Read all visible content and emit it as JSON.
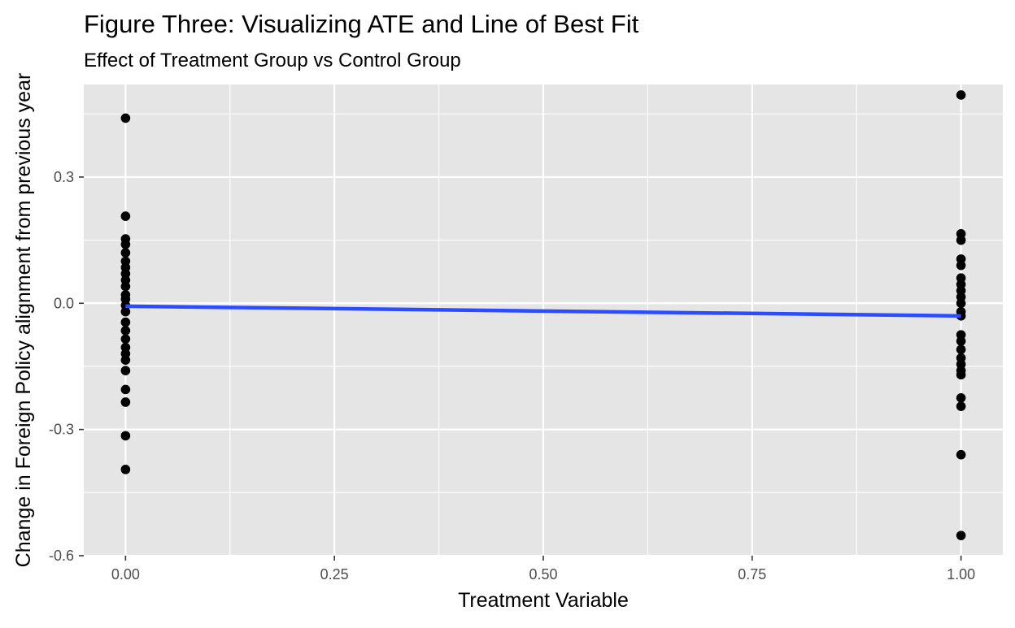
{
  "chart_data": {
    "type": "scatter",
    "title": "Figure Three: Visualizing ATE and Line of Best Fit",
    "subtitle": "Effect of Treatment Group vs Control Group",
    "xlabel": "Treatment Variable",
    "ylabel": "Change in Foreign Policy alignment from previous year",
    "xlim": [
      -0.05,
      1.05
    ],
    "ylim": [
      -0.6,
      0.52
    ],
    "x_ticks": [
      {
        "value": 0,
        "label": "0.00"
      },
      {
        "value": 0.25,
        "label": "0.25"
      },
      {
        "value": 0.5,
        "label": "0.50"
      },
      {
        "value": 0.75,
        "label": "0.75"
      },
      {
        "value": 1,
        "label": "1.00"
      }
    ],
    "y_ticks": [
      {
        "value": -0.6,
        "label": "-0.6"
      },
      {
        "value": -0.3,
        "label": "-0.3"
      },
      {
        "value": 0,
        "label": "0.0"
      },
      {
        "value": 0.3,
        "label": "0.3"
      }
    ],
    "grid": true,
    "legend": "none",
    "colors": {
      "panel_background": "#e5e5e5",
      "grid_line": "#ffffff",
      "points": "#000000",
      "fit_line": "#2b4cff"
    },
    "series": [
      {
        "type": "scatter",
        "points": [
          {
            "x": 0,
            "y": 0.44
          },
          {
            "x": 0,
            "y": 0.207
          },
          {
            "x": 0,
            "y": 0.153
          },
          {
            "x": 0,
            "y": 0.14
          },
          {
            "x": 0,
            "y": 0.12
          },
          {
            "x": 0,
            "y": 0.1
          },
          {
            "x": 0,
            "y": 0.085
          },
          {
            "x": 0,
            "y": 0.07
          },
          {
            "x": 0,
            "y": 0.055
          },
          {
            "x": 0,
            "y": 0.04
          },
          {
            "x": 0,
            "y": 0.02
          },
          {
            "x": 0,
            "y": 0.01
          },
          {
            "x": 0,
            "y": -0.005
          },
          {
            "x": 0,
            "y": -0.02
          },
          {
            "x": 0,
            "y": -0.045
          },
          {
            "x": 0,
            "y": -0.065
          },
          {
            "x": 0,
            "y": -0.085
          },
          {
            "x": 0,
            "y": -0.105
          },
          {
            "x": 0,
            "y": -0.12
          },
          {
            "x": 0,
            "y": -0.135
          },
          {
            "x": 0,
            "y": -0.16
          },
          {
            "x": 0,
            "y": -0.205
          },
          {
            "x": 0,
            "y": -0.235
          },
          {
            "x": 0,
            "y": -0.315
          },
          {
            "x": 0,
            "y": -0.395
          },
          {
            "x": 1,
            "y": 0.495
          },
          {
            "x": 1,
            "y": 0.165
          },
          {
            "x": 1,
            "y": 0.15
          },
          {
            "x": 1,
            "y": 0.105
          },
          {
            "x": 1,
            "y": 0.09
          },
          {
            "x": 1,
            "y": 0.06
          },
          {
            "x": 1,
            "y": 0.045
          },
          {
            "x": 1,
            "y": 0.03
          },
          {
            "x": 1,
            "y": 0.015
          },
          {
            "x": 1,
            "y": 0.0
          },
          {
            "x": 1,
            "y": -0.02
          },
          {
            "x": 1,
            "y": -0.03
          },
          {
            "x": 1,
            "y": -0.075
          },
          {
            "x": 1,
            "y": -0.09
          },
          {
            "x": 1,
            "y": -0.11
          },
          {
            "x": 1,
            "y": -0.13
          },
          {
            "x": 1,
            "y": -0.145
          },
          {
            "x": 1,
            "y": -0.16
          },
          {
            "x": 1,
            "y": -0.17
          },
          {
            "x": 1,
            "y": -0.225
          },
          {
            "x": 1,
            "y": -0.245
          },
          {
            "x": 1,
            "y": -0.36
          },
          {
            "x": 1,
            "y": -0.552
          }
        ]
      },
      {
        "type": "line",
        "points": [
          {
            "x": 0,
            "y": -0.007
          },
          {
            "x": 1,
            "y": -0.03
          }
        ]
      }
    ]
  }
}
